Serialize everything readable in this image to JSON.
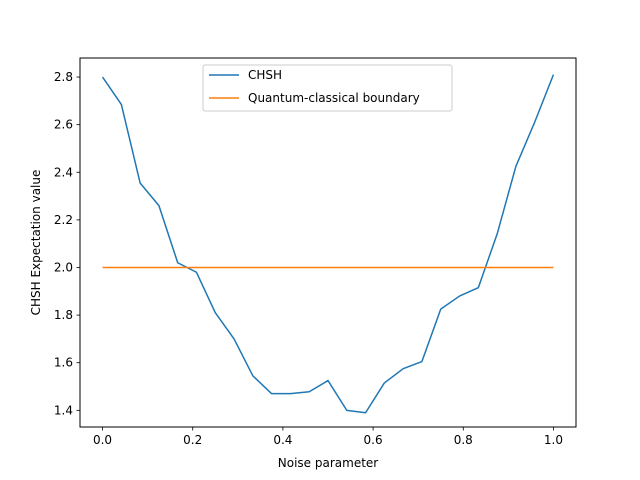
{
  "chart_data": {
    "type": "line",
    "xlabel": "Noise parameter",
    "ylabel": "CHSH Expectation value",
    "xlim": [
      -0.05,
      1.05
    ],
    "ylim": [
      1.33,
      2.88
    ],
    "x_ticks": [
      0.0,
      0.2,
      0.4,
      0.6,
      0.8,
      1.0
    ],
    "x_tick_labels": [
      "0.0",
      "0.2",
      "0.4",
      "0.6",
      "0.8",
      "1.0"
    ],
    "y_ticks": [
      1.4,
      1.6,
      1.8,
      2.0,
      2.2,
      2.4,
      2.6,
      2.8
    ],
    "y_tick_labels": [
      "1.4",
      "1.6",
      "1.8",
      "2.0",
      "2.2",
      "2.4",
      "2.6",
      "2.8"
    ],
    "grid": false,
    "legend": {
      "position": "top-center"
    },
    "series": [
      {
        "name": "CHSH",
        "color": "#1f77b4",
        "x": [
          0.0,
          0.0417,
          0.0833,
          0.125,
          0.1667,
          0.2083,
          0.25,
          0.2917,
          0.3333,
          0.375,
          0.4167,
          0.4583,
          0.5,
          0.5417,
          0.5833,
          0.625,
          0.6667,
          0.7083,
          0.75,
          0.7917,
          0.8333,
          0.875,
          0.9167,
          0.9583,
          1.0
        ],
        "y": [
          2.8,
          2.685,
          2.355,
          2.26,
          2.02,
          1.98,
          1.81,
          1.7,
          1.545,
          1.47,
          1.47,
          1.478,
          1.525,
          1.4,
          1.39,
          1.515,
          1.575,
          1.605,
          1.825,
          1.88,
          1.915,
          2.14,
          2.425,
          2.61,
          2.81
        ]
      },
      {
        "name": "Quantum-classical boundary",
        "color": "#ff7f0e",
        "x": [
          0.0,
          1.0
        ],
        "y": [
          2.0,
          2.0
        ]
      }
    ]
  }
}
